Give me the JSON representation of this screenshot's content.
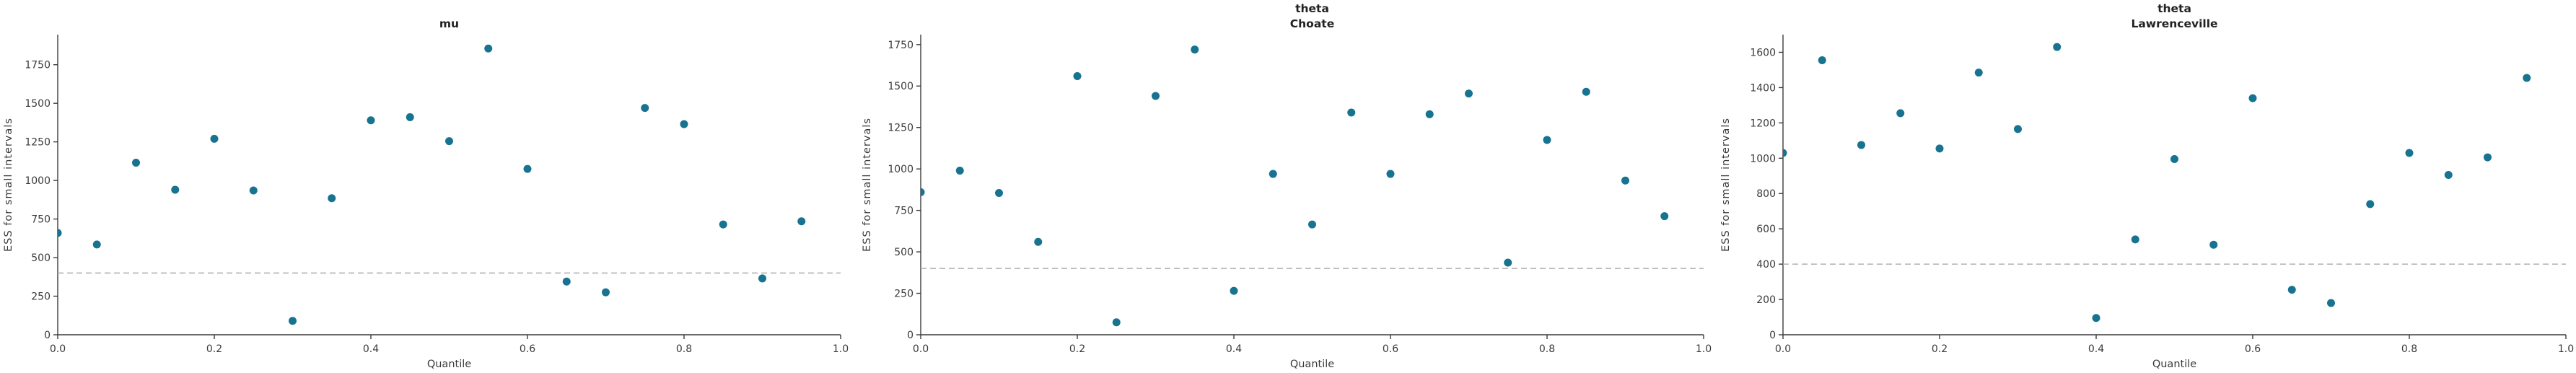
{
  "figure": {
    "kind": "ess-quantile-plot",
    "threshold_label": "ess-threshold"
  },
  "colors": {
    "marker": "#17738f",
    "threshold_line": "#b2b2b2",
    "tick_text": "#3a3a3a",
    "title_text": "#222222",
    "spine": "#3c3c3c",
    "background": "#ffffff"
  },
  "chart_data": [
    {
      "id": "mu",
      "type": "scatter",
      "title_lines": [
        "mu"
      ],
      "xlabel": "Quantile",
      "ylabel": "ESS for small intervals",
      "x": [
        0.0,
        0.05,
        0.1,
        0.15,
        0.2,
        0.25,
        0.3,
        0.35,
        0.4,
        0.45,
        0.5,
        0.55,
        0.6,
        0.65,
        0.7,
        0.75,
        0.8,
        0.85,
        0.9,
        0.95
      ],
      "y": [
        660,
        585,
        1115,
        940,
        1270,
        935,
        90,
        885,
        1390,
        1410,
        1255,
        1855,
        1075,
        345,
        275,
        1470,
        1365,
        715,
        365,
        735
      ],
      "hline": 400,
      "xlim": [
        0,
        1
      ],
      "ylim": [
        0,
        1945
      ],
      "yticks": [
        0,
        250,
        500,
        750,
        1000,
        1250,
        1500,
        1750
      ],
      "xtick_labels": [
        "0.0",
        "0.2",
        "0.4",
        "0.6",
        "0.8",
        "1.0"
      ],
      "xtick_values": [
        0.0,
        0.2,
        0.4,
        0.6,
        0.8,
        1.0
      ],
      "grid": false,
      "legend": "none"
    },
    {
      "id": "theta-choate",
      "type": "scatter",
      "title_lines": [
        "theta",
        "Choate"
      ],
      "xlabel": "Quantile",
      "ylabel": "ESS for small intervals",
      "x": [
        0.0,
        0.05,
        0.1,
        0.15,
        0.2,
        0.25,
        0.3,
        0.35,
        0.4,
        0.45,
        0.5,
        0.55,
        0.6,
        0.65,
        0.7,
        0.75,
        0.8,
        0.85,
        0.9,
        0.95
      ],
      "y": [
        860,
        990,
        855,
        560,
        1560,
        75,
        1440,
        1720,
        265,
        970,
        665,
        1340,
        970,
        1330,
        1455,
        435,
        1175,
        1465,
        930,
        715
      ],
      "hline": 400,
      "xlim": [
        0,
        1
      ],
      "ylim": [
        0,
        1810
      ],
      "yticks": [
        0,
        250,
        500,
        750,
        1000,
        1250,
        1500,
        1750
      ],
      "xtick_labels": [
        "0.0",
        "0.2",
        "0.4",
        "0.6",
        "0.8",
        "1.0"
      ],
      "xtick_values": [
        0.0,
        0.2,
        0.4,
        0.6,
        0.8,
        1.0
      ],
      "grid": false,
      "legend": "none"
    },
    {
      "id": "theta-lawrenceville",
      "type": "scatter",
      "title_lines": [
        "theta",
        "Lawrenceville"
      ],
      "xlabel": "Quantile",
      "ylabel": "ESS for small intervals",
      "x": [
        0.0,
        0.05,
        0.1,
        0.15,
        0.2,
        0.25,
        0.3,
        0.35,
        0.4,
        0.45,
        0.5,
        0.55,
        0.6,
        0.65,
        0.7,
        0.75,
        0.8,
        0.85,
        0.9,
        0.95
      ],
      "y": [
        1030,
        1555,
        1075,
        1255,
        1055,
        1485,
        1165,
        1630,
        95,
        540,
        995,
        510,
        1340,
        255,
        180,
        740,
        1030,
        905,
        1005,
        1455
      ],
      "hline": 400,
      "xlim": [
        0,
        1
      ],
      "ylim": [
        0,
        1700
      ],
      "yticks": [
        0,
        200,
        400,
        600,
        800,
        1000,
        1200,
        1400,
        1600
      ],
      "xtick_labels": [
        "0.0",
        "0.2",
        "0.4",
        "0.6",
        "0.8",
        "1.0"
      ],
      "xtick_values": [
        0.0,
        0.2,
        0.4,
        0.6,
        0.8,
        1.0
      ],
      "grid": false,
      "legend": "none"
    }
  ]
}
